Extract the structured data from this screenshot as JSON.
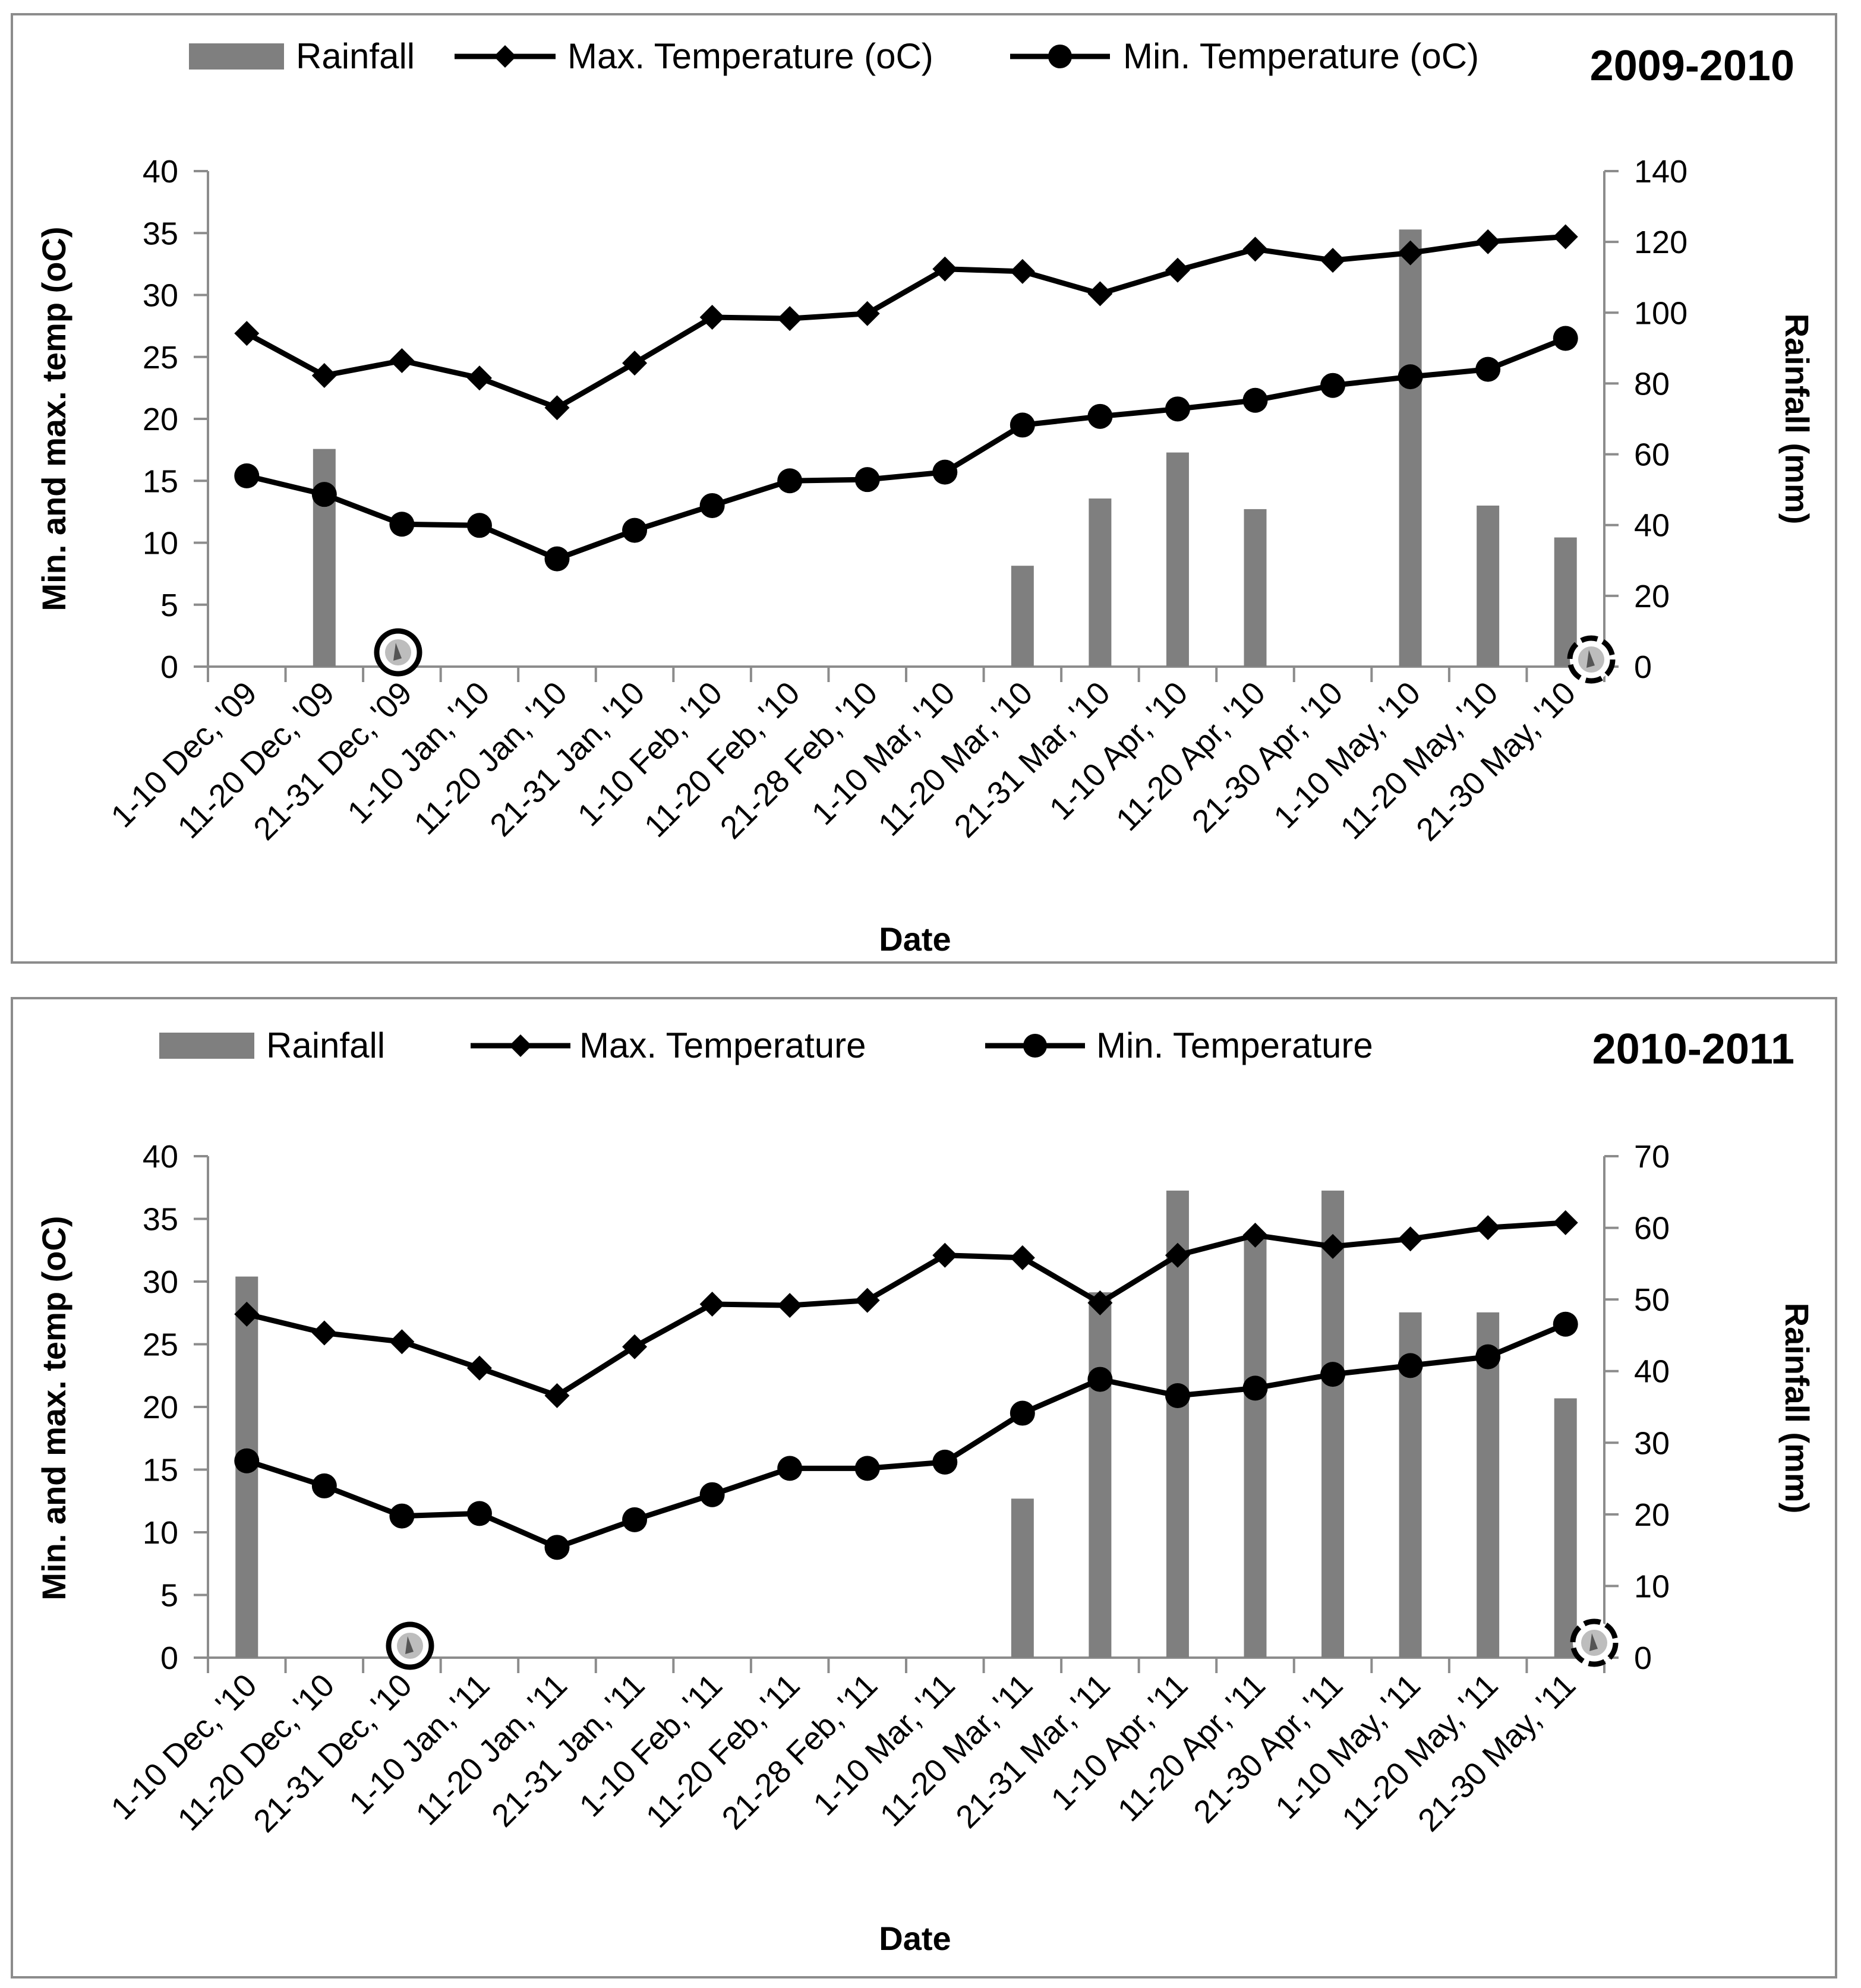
{
  "colors": {
    "bar": "#7f7f7f",
    "line": "#000000",
    "frame": "#8c8c8c",
    "axis": "#8c8c8c"
  },
  "chart_data": [
    {
      "type": "bar+line",
      "title": "2009-2010",
      "xlabel": "Date",
      "ylabel_left": "Min. and max. temp (oC)",
      "ylabel_right": "Rainfall (mm)",
      "ylim_left": [
        0,
        40
      ],
      "yticks_left": [
        0,
        5,
        10,
        15,
        20,
        25,
        30,
        35,
        40
      ],
      "ylim_right": [
        0,
        140
      ],
      "yticks_right": [
        0,
        20,
        40,
        60,
        80,
        100,
        120,
        140
      ],
      "legend": {
        "rainfall": "Rainfall",
        "max": "Max. Temperature (oC)",
        "min": "Min. Temperature (oC)"
      },
      "categories": [
        "1-10 Dec, '09",
        "11-20 Dec, '09",
        "21-31 Dec, '09",
        "1-10 Jan, '10",
        "11-20 Jan, '10",
        "21-31 Jan, '10",
        "1-10 Feb, '10",
        "11-20 Feb, '10",
        "21-28 Feb, '10",
        "1-10 Mar, '10",
        "11-20 Mar, '10",
        "21-31 Mar, '10",
        "1-10 Apr, '10",
        "11-20 Apr, '10",
        "21-30 Apr, '10",
        "1-10 May, '10",
        "11-20 May, '10",
        "21-30 May, '10"
      ],
      "series": [
        {
          "name": "Rainfall",
          "axis": "right",
          "type": "bar",
          "values": [
            0,
            61.5,
            0,
            0,
            0,
            0,
            0,
            0,
            0,
            0,
            28.5,
            47.5,
            60.5,
            44.5,
            0,
            123.5,
            45.5,
            36.5
          ]
        },
        {
          "name": "Max. Temperature (oC)",
          "axis": "left",
          "type": "line",
          "marker": "diamond",
          "values": [
            26.9,
            23.5,
            24.7,
            23.3,
            20.9,
            24.5,
            28.2,
            28.1,
            28.5,
            32.1,
            31.9,
            30.1,
            32.0,
            33.7,
            32.8,
            33.4,
            34.3,
            34.7
          ]
        },
        {
          "name": "Min. Temperature (oC)",
          "axis": "left",
          "type": "line",
          "marker": "circle",
          "values": [
            15.4,
            13.9,
            11.5,
            11.4,
            8.7,
            11.0,
            13.0,
            15.0,
            15.1,
            15.7,
            19.5,
            20.2,
            20.8,
            21.5,
            22.7,
            23.4,
            24.0,
            26.5
          ]
        }
      ]
    },
    {
      "type": "bar+line",
      "title": "2010-2011",
      "xlabel": "Date",
      "ylabel_left": "Min. and max. temp (oC)",
      "ylabel_right": "Rainfall (mm)",
      "ylim_left": [
        0,
        40
      ],
      "yticks_left": [
        0,
        5,
        10,
        15,
        20,
        25,
        30,
        35,
        40
      ],
      "ylim_right": [
        0,
        70
      ],
      "yticks_right": [
        0,
        10,
        20,
        30,
        40,
        50,
        60,
        70
      ],
      "legend": {
        "rainfall": "Rainfall",
        "max": "Max. Temperature",
        "min": "Min. Temperature"
      },
      "categories": [
        "1-10 Dec, '10",
        "11-20 Dec, '10",
        "21-31 Dec, '10",
        "1-10 Jan, '11",
        "11-20 Jan, '11",
        "21-31 Jan, '11",
        "1-10 Feb, '11",
        "11-20 Feb, '11",
        "21-28 Feb, '11",
        "1-10 Mar, '11",
        "11-20 Mar, '11",
        "21-31 Mar, '11",
        "1-10 Apr, '11",
        "11-20 Apr, '11",
        "21-30 Apr, '11",
        "1-10 May, '11",
        "11-20 May, '11",
        "21-30 May, '11"
      ],
      "series": [
        {
          "name": "Rainfall",
          "axis": "right",
          "type": "bar",
          "values": [
            53.2,
            0,
            0,
            0,
            0,
            0,
            0,
            0,
            0,
            0,
            22.2,
            51.0,
            65.2,
            59.0,
            65.2,
            48.2,
            48.2,
            36.2
          ]
        },
        {
          "name": "Max. Temperature",
          "axis": "left",
          "type": "line",
          "marker": "diamond",
          "values": [
            27.4,
            25.9,
            25.2,
            23.1,
            20.9,
            24.8,
            28.2,
            28.1,
            28.5,
            32.1,
            31.9,
            28.3,
            32.1,
            33.7,
            32.8,
            33.4,
            34.3,
            34.7
          ]
        },
        {
          "name": "Min. Temperature",
          "axis": "left",
          "type": "line",
          "marker": "circle",
          "values": [
            15.7,
            13.7,
            11.3,
            11.5,
            8.8,
            11.0,
            13.0,
            15.1,
            15.1,
            15.6,
            19.5,
            22.2,
            20.9,
            21.5,
            22.6,
            23.3,
            24.0,
            26.6
          ]
        }
      ]
    }
  ]
}
